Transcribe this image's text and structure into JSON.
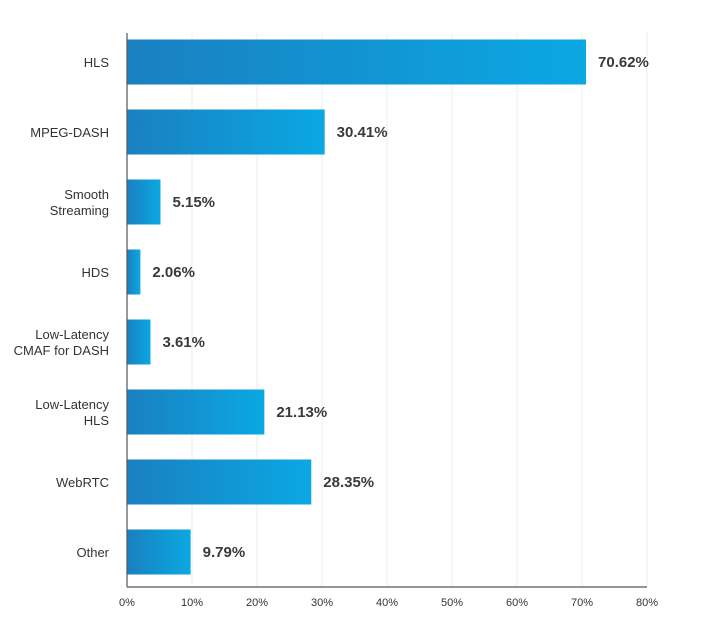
{
  "chart_data": {
    "type": "bar",
    "orientation": "horizontal",
    "title": "",
    "xlabel": "",
    "ylabel": "",
    "xlim": [
      0,
      80
    ],
    "grid": true,
    "categories": [
      [
        "HLS"
      ],
      [
        "MPEG-DASH"
      ],
      [
        "Smooth",
        "Streaming"
      ],
      [
        "HDS"
      ],
      [
        "Low-Latency",
        "CMAF for DASH"
      ],
      [
        "Low-Latency",
        "HLS"
      ],
      [
        "WebRTC"
      ],
      [
        "Other"
      ]
    ],
    "values": [
      70.62,
      30.41,
      5.15,
      2.06,
      3.61,
      21.13,
      28.35,
      9.79
    ],
    "value_labels": [
      "70.62%",
      "30.41%",
      "5.15%",
      "2.06%",
      "3.61%",
      "21.13%",
      "28.35%",
      "9.79%"
    ],
    "x_ticks": [
      0,
      10,
      20,
      30,
      40,
      50,
      60,
      70,
      80
    ],
    "x_tick_labels": [
      "0%",
      "10%",
      "20%",
      "30%",
      "40%",
      "50%",
      "60%",
      "70%",
      "80%"
    ],
    "colors": {
      "bar_start": "#1a80c0",
      "bar_end": "#0aa8e3",
      "axis": "#555555",
      "grid": "#ececec",
      "text": "#333333"
    }
  }
}
